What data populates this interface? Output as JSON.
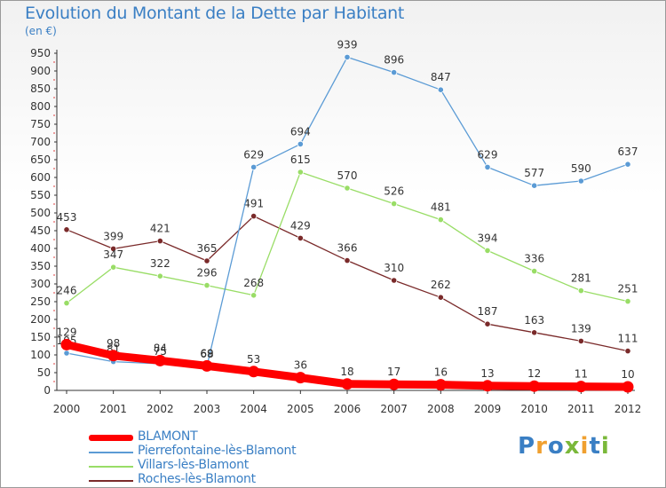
{
  "chart_data": {
    "type": "line",
    "title": "Evolution du Montant de la Dette par Habitant",
    "subtitle": "(en €)",
    "x": [
      "2000",
      "2001",
      "2002",
      "2003",
      "2004",
      "2005",
      "2006",
      "2007",
      "2008",
      "2009",
      "2010",
      "2011",
      "2012"
    ],
    "ylim": [
      0,
      950
    ],
    "yticks": [
      0,
      50,
      100,
      150,
      200,
      250,
      300,
      350,
      400,
      450,
      500,
      550,
      600,
      650,
      700,
      750,
      800,
      850,
      900,
      950
    ],
    "grid": false,
    "legend_position": "bottom-left",
    "series": [
      {
        "name": "BLAMONT",
        "color": "#ff0000",
        "values": [
          129,
          98,
          84,
          69,
          53,
          36,
          18,
          17,
          16,
          13,
          12,
          11,
          10
        ]
      },
      {
        "name": "Pierrefontaine-lès-Blamont",
        "color": "#5b9bd5",
        "values": [
          105,
          81,
          75,
          68,
          629,
          694,
          939,
          896,
          847,
          629,
          577,
          590,
          637
        ]
      },
      {
        "name": "Villars-lès-Blamont",
        "color": "#99dd66",
        "values": [
          246,
          347,
          322,
          296,
          268,
          615,
          570,
          526,
          481,
          394,
          336,
          281,
          251
        ]
      },
      {
        "name": "Roches-lès-Blamont",
        "color": "#7a2a2a",
        "values": [
          453,
          399,
          421,
          365,
          491,
          429,
          366,
          310,
          262,
          187,
          163,
          139,
          111
        ]
      }
    ]
  },
  "logo": {
    "letters": [
      "P",
      "r",
      "o",
      "x",
      "i",
      "t",
      "i"
    ],
    "colors": [
      "#3a7fc4",
      "#f0a030",
      "#3a7fc4",
      "#7ab83a",
      "#f0a030",
      "#3a7fc4",
      "#7ab83a"
    ]
  }
}
